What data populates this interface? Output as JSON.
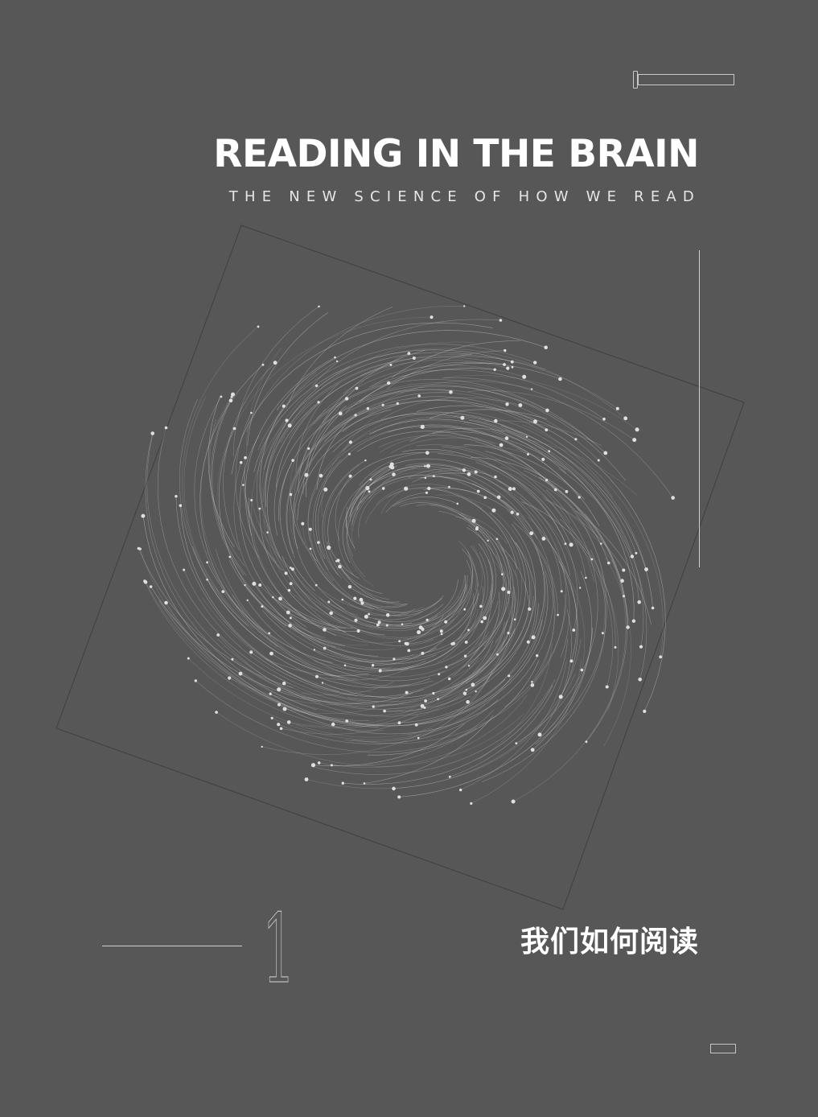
{
  "cover": {
    "title": "READING IN THE BRAIN",
    "subtitle": "THE NEW SCIENCE OF HOW WE READ"
  },
  "chapter": {
    "number": "1",
    "title": "我们如何阅读"
  },
  "colors": {
    "background": "#575757",
    "text": "#ffffff",
    "line": "#d0d0d0"
  }
}
